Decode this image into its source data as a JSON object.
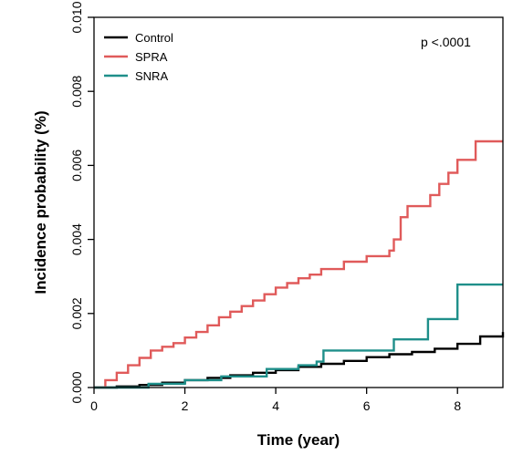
{
  "chart_data": {
    "type": "line",
    "title": "",
    "xlabel": "Time (year)",
    "ylabel": "Incidence probability (%)",
    "xlim": [
      0,
      9
    ],
    "ylim": [
      0,
      0.01
    ],
    "xticks": [
      0,
      2,
      4,
      6,
      8
    ],
    "xtick_labels": [
      "0",
      "2",
      "4",
      "6",
      "8"
    ],
    "yticks": [
      0,
      0.002,
      0.004,
      0.006,
      0.008,
      0.01
    ],
    "ytick_labels": [
      "0.000",
      "0.002",
      "0.004",
      "0.006",
      "0.008",
      "0.010"
    ],
    "grid": false,
    "legend_position": "top-left",
    "annotation": "p <.0001",
    "series": [
      {
        "name": "Control",
        "color": "#000000",
        "x": [
          0,
          0.5,
          1,
          1.5,
          2,
          2.5,
          3,
          3.5,
          4,
          4.5,
          5,
          5.5,
          6,
          6.5,
          7,
          7.5,
          8,
          8.5,
          9
        ],
        "y": [
          0,
          3e-05,
          7e-05,
          0.00013,
          0.0002,
          0.00026,
          0.00033,
          0.0004,
          0.00047,
          0.00056,
          0.00064,
          0.00072,
          0.00082,
          0.0009,
          0.00096,
          0.00105,
          0.00118,
          0.00138,
          0.0015
        ]
      },
      {
        "name": "SPRA",
        "color": "#e05a5a",
        "x": [
          0,
          0.25,
          0.5,
          0.75,
          1,
          1.25,
          1.5,
          1.75,
          2,
          2.25,
          2.5,
          2.75,
          3,
          3.25,
          3.5,
          3.75,
          4,
          4.25,
          4.5,
          4.75,
          5,
          5.5,
          6,
          6.5,
          6.6,
          6.75,
          6.9,
          7,
          7.25,
          7.4,
          7.6,
          7.8,
          8,
          8.25,
          8.4,
          9
        ],
        "y": [
          0,
          0.0002,
          0.0004,
          0.0006,
          0.0008,
          0.001,
          0.0011,
          0.0012,
          0.00135,
          0.0015,
          0.00168,
          0.0019,
          0.00205,
          0.0022,
          0.00235,
          0.00252,
          0.0027,
          0.00282,
          0.00295,
          0.00305,
          0.0032,
          0.0034,
          0.00355,
          0.0037,
          0.004,
          0.0046,
          0.0049,
          0.0049,
          0.0049,
          0.0052,
          0.0055,
          0.0058,
          0.00615,
          0.00615,
          0.00665,
          0.00665
        ]
      },
      {
        "name": "SNRA",
        "color": "#1f8f8a",
        "x": [
          0,
          1.2,
          2,
          2.8,
          3.8,
          4.5,
          4.9,
          5.05,
          6.6,
          7.35,
          8,
          9
        ],
        "y": [
          0,
          0.0001,
          0.0002,
          0.0003,
          0.0005,
          0.0006,
          0.0007,
          0.001,
          0.0013,
          0.00185,
          0.00278,
          0.00278
        ]
      }
    ]
  }
}
